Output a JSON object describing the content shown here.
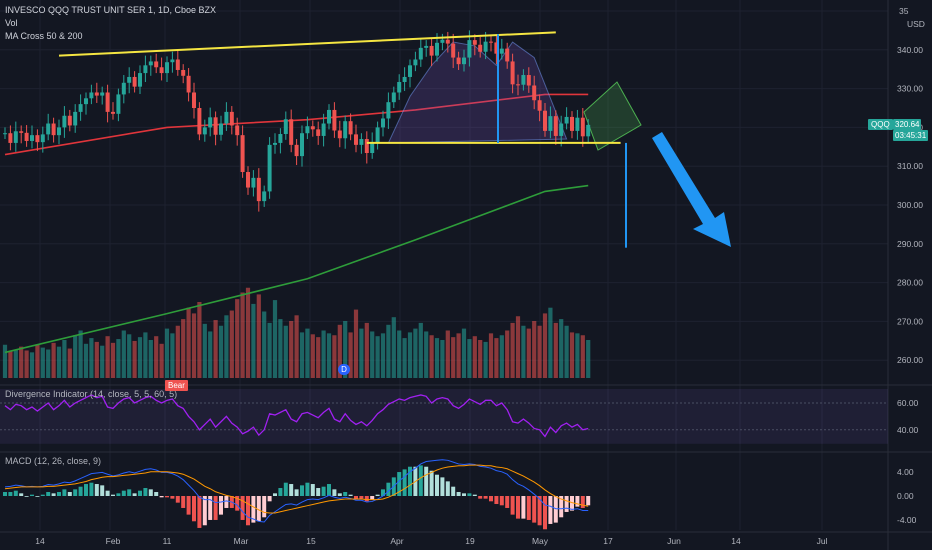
{
  "header": {
    "title": "INVESCO QQQ TRUST UNIT SER 1, 1D, Cboe BZX",
    "vol_label": "Vol",
    "ma_label": "MA Cross 50 & 200"
  },
  "panes": {
    "divergence_label": "Divergence Indicator (14, close, 5, 5, 60, 5)",
    "macd_label": "MACD (12, 26, close, 9)"
  },
  "badges": {
    "bear": "Bear",
    "dividend": "D"
  },
  "price_tag": {
    "symbol": "QQQ",
    "price": "320.64",
    "countdown": "03:45:31"
  },
  "axis": {
    "price_ticks": [
      "340.00",
      "330.00",
      "320.00",
      "310.00",
      "300.00",
      "290.00",
      "280.00",
      "270.00",
      "260.00"
    ],
    "price_top_partial": "35",
    "currency": "USD",
    "div_ticks": [
      "60.00",
      "40.00"
    ],
    "macd_ticks": [
      "4.00",
      "0.00",
      "-4.00"
    ],
    "date_ticks": [
      "14",
      "Feb",
      "11",
      "Mar",
      "15",
      "Apr",
      "19",
      "May",
      "17",
      "Jun",
      "14",
      "Jul"
    ]
  },
  "colors": {
    "background": "#131722",
    "up": "#26a69a",
    "down": "#ef5350",
    "ma50": "#e0353b",
    "ma200": "#2e9d3a",
    "trendline": "#f5e642",
    "target": "#2196f3",
    "divergence_line": "#a020f0",
    "macd_line": "#2962ff",
    "signal_line": "#ff9800"
  },
  "chart_data": {
    "type": "candlestick",
    "symbol": "QQQ",
    "timeframe": "1D",
    "last_price": 320.64,
    "y_range": [
      255,
      350
    ],
    "closes": [
      318.5,
      316.0,
      319.0,
      318.6,
      316.5,
      318.0,
      316.2,
      318.2,
      321.0,
      318.0,
      320.0,
      323.0,
      320.5,
      324.0,
      326.0,
      327.5,
      329.0,
      328.2,
      329.0,
      324.0,
      323.5,
      328.5,
      331.5,
      333.0,
      330.5,
      334.0,
      336.0,
      337.0,
      335.5,
      334.0,
      336.8,
      337.5,
      334.8,
      333.3,
      329.0,
      325.0,
      318.2,
      320.0,
      322.6,
      318.1,
      321.0,
      324.0,
      320.5,
      318.0,
      308.5,
      304.5,
      307.0,
      301.0,
      303.5,
      315.5,
      316.0,
      318.3,
      322.1,
      315.5,
      312.6,
      318.5,
      320.3,
      319.5,
      317.8,
      321.0,
      324.5,
      319.2,
      317.2,
      321.6,
      318.2,
      315.5,
      317.0,
      313.4,
      316.2,
      320.0,
      322.3,
      326.5,
      329.0,
      331.7,
      333.0,
      336.0,
      337.5,
      340.5,
      341.0,
      338.5,
      341.8,
      342.6,
      341.6,
      338.0,
      336.3,
      338.0,
      342.5,
      341.3,
      339.5,
      342.1,
      341.9,
      339.0,
      340.3,
      337.0,
      331.1,
      331.0,
      333.5,
      330.8,
      327.0,
      324.3,
      319.1,
      322.9,
      317.8,
      321.0,
      322.7,
      319.1,
      322.5,
      317.7,
      320.64
    ],
    "series": [
      {
        "name": "MA 50",
        "values": [
          [
            0,
            313.0
          ],
          [
            30,
            320.0
          ],
          [
            56,
            322.0
          ],
          [
            76,
            324.5
          ],
          [
            100,
            328.5
          ],
          [
            108,
            328.5
          ]
        ]
      },
      {
        "name": "MA 200",
        "values": [
          [
            0,
            262.0
          ],
          [
            30,
            272.0
          ],
          [
            56,
            281.0
          ],
          [
            76,
            291.0
          ],
          [
            100,
            303.5
          ],
          [
            108,
            305.0
          ]
        ]
      }
    ],
    "annotations": {
      "resistance_line": [
        [
          10,
          338.5
        ],
        [
          102,
          344.5
        ]
      ],
      "neckline": [
        [
          67,
          316.0
        ],
        [
          114,
          316.0
        ]
      ],
      "target_projection": [
        316,
        289
      ],
      "arrow_direction": "down"
    },
    "volume": [
      0.35,
      0.28,
      0.3,
      0.33,
      0.29,
      0.27,
      0.35,
      0.32,
      0.3,
      0.37,
      0.33,
      0.4,
      0.31,
      0.45,
      0.5,
      0.36,
      0.42,
      0.38,
      0.34,
      0.44,
      0.37,
      0.41,
      0.5,
      0.46,
      0.39,
      0.43,
      0.48,
      0.4,
      0.44,
      0.36,
      0.52,
      0.47,
      0.55,
      0.62,
      0.74,
      0.68,
      0.8,
      0.57,
      0.49,
      0.61,
      0.55,
      0.66,
      0.71,
      0.83,
      0.9,
      0.95,
      0.78,
      0.88,
      0.7,
      0.58,
      0.82,
      0.62,
      0.55,
      0.6,
      0.66,
      0.48,
      0.52,
      0.46,
      0.43,
      0.5,
      0.47,
      0.45,
      0.56,
      0.6,
      0.48,
      0.72,
      0.52,
      0.58,
      0.49,
      0.44,
      0.47,
      0.56,
      0.64,
      0.5,
      0.42,
      0.48,
      0.52,
      0.58,
      0.49,
      0.45,
      0.42,
      0.4,
      0.5,
      0.43,
      0.47,
      0.52,
      0.41,
      0.44,
      0.4,
      0.38,
      0.47,
      0.42,
      0.45,
      0.5,
      0.58,
      0.65,
      0.55,
      0.52,
      0.6,
      0.55,
      0.68,
      0.74,
      0.58,
      0.62,
      0.55,
      0.48,
      0.47,
      0.45,
      0.4
    ],
    "divergence_indicator": [
      58,
      55,
      59,
      58,
      55,
      57,
      54,
      57,
      60,
      55,
      58,
      62,
      57,
      60,
      62,
      64,
      66,
      64,
      65,
      57,
      56,
      60,
      63,
      64,
      60,
      62,
      64,
      65,
      62,
      60,
      62,
      63,
      58,
      56,
      50,
      46,
      40,
      44,
      48,
      42,
      46,
      50,
      45,
      42,
      37,
      39,
      42,
      36,
      40,
      52,
      51,
      53,
      55,
      48,
      46,
      52,
      53,
      51,
      49,
      53,
      56,
      48,
      46,
      52,
      47,
      44,
      46,
      43,
      47,
      52,
      55,
      59,
      61,
      63,
      62,
      64,
      65,
      66,
      65,
      60,
      63,
      64,
      63,
      58,
      56,
      59,
      63,
      61,
      59,
      62,
      62,
      58,
      60,
      55,
      46,
      45,
      48,
      45,
      41,
      40,
      35,
      42,
      38,
      43,
      45,
      42,
      44,
      40,
      41
    ],
    "divergence_levels": [
      60,
      40
    ],
    "macd": [
      1.5,
      1.6,
      1.8,
      1.7,
      1.5,
      1.6,
      1.5,
      1.6,
      1.9,
      1.8,
      2.0,
      2.3,
      2.2,
      2.5,
      2.9,
      3.3,
      3.7,
      3.8,
      3.9,
      3.6,
      3.3,
      3.5,
      3.8,
      4.0,
      3.8,
      4.1,
      4.4,
      4.5,
      4.3,
      3.9,
      3.9,
      3.7,
      3.3,
      2.7,
      1.8,
      0.9,
      -0.2,
      -0.6,
      -0.6,
      -1.1,
      -1.0,
      -0.8,
      -1.0,
      -1.5,
      -2.6,
      -3.5,
      -3.8,
      -4.2,
      -4.3,
      -3.2,
      -2.6,
      -2.0,
      -1.4,
      -1.3,
      -1.5,
      -1.0,
      -0.6,
      -0.5,
      -0.6,
      -0.3,
      0.1,
      -0.2,
      -0.4,
      -0.2,
      -0.4,
      -0.7,
      -0.7,
      -1.0,
      -0.9,
      -0.5,
      0.0,
      0.8,
      1.6,
      2.5,
      3.2,
      4.0,
      4.6,
      5.3,
      5.7,
      5.8,
      5.9,
      6.0,
      5.9,
      5.6,
      5.3,
      5.2,
      5.3,
      5.2,
      4.9,
      4.8,
      4.6,
      4.2,
      4.0,
      3.6,
      2.7,
      2.0,
      1.6,
      1.0,
      0.3,
      -0.5,
      -1.5,
      -1.7,
      -2.1,
      -2.1,
      -2.0,
      -2.2,
      -2.1,
      -2.4,
      -2.4
    ],
    "signal": [
      1.2,
      1.3,
      1.4,
      1.5,
      1.5,
      1.5,
      1.5,
      1.5,
      1.6,
      1.6,
      1.7,
      1.8,
      1.9,
      2.0,
      2.2,
      2.4,
      2.7,
      2.9,
      3.1,
      3.2,
      3.2,
      3.3,
      3.4,
      3.5,
      3.6,
      3.7,
      3.8,
      4.0,
      4.0,
      4.0,
      4.0,
      3.9,
      3.8,
      3.6,
      3.2,
      2.8,
      2.2,
      1.6,
      1.2,
      0.7,
      0.4,
      0.1,
      -0.1,
      -0.4,
      -0.8,
      -1.3,
      -1.8,
      -2.3,
      -2.7,
      -2.8,
      -2.8,
      -2.6,
      -2.4,
      -2.2,
      -2.0,
      -1.8,
      -1.6,
      -1.4,
      -1.2,
      -1.0,
      -0.8,
      -0.7,
      -0.6,
      -0.5,
      -0.5,
      -0.5,
      -0.5,
      -0.6,
      -0.6,
      -0.6,
      -0.5,
      -0.2,
      0.2,
      0.7,
      1.2,
      1.8,
      2.4,
      3.0,
      3.5,
      3.9,
      4.3,
      4.6,
      4.8,
      4.9,
      5.0,
      5.0,
      5.1,
      5.1,
      5.1,
      5.0,
      5.0,
      4.8,
      4.7,
      4.5,
      4.1,
      3.7,
      3.3,
      2.8,
      2.3,
      1.7,
      1.0,
      0.4,
      -0.1,
      -0.5,
      -0.8,
      -1.1,
      -1.3,
      -1.5,
      -1.7
    ]
  }
}
